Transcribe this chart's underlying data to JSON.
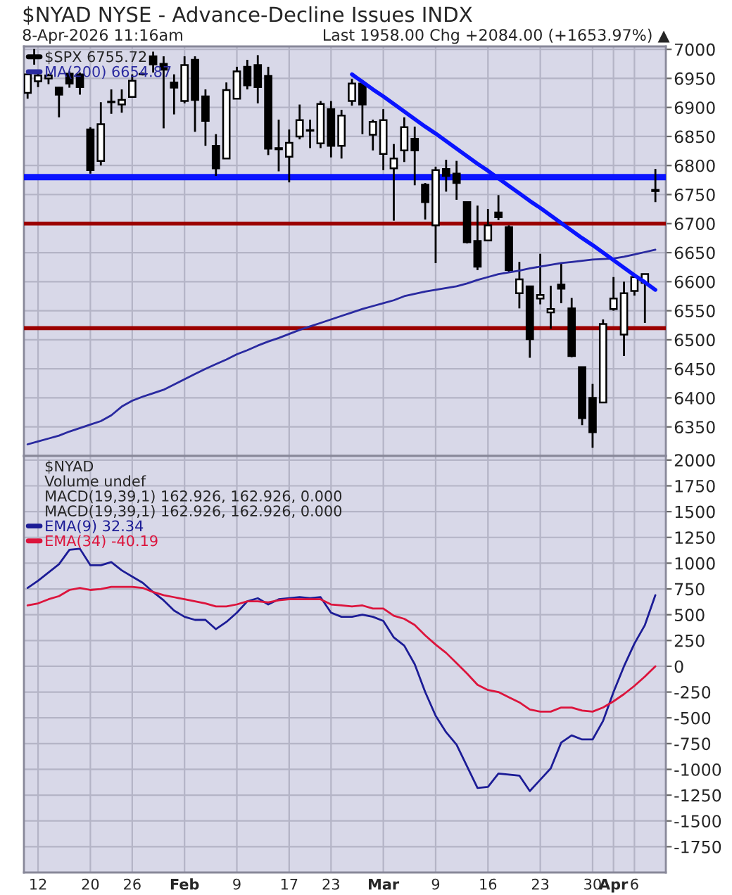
{
  "chart_data": [
    {
      "type": "candlestick",
      "title": "$NYAD NYSE - Advance-Decline Issues INDX",
      "subtitle": "8-Apr-2026 11:16am",
      "annotations": [
        "Last 1958.00 Chg +2084.00 (+1653.97%) ▲"
      ],
      "categories": [
        null,
        null,
        null,
        null,
        null,
        null,
        null,
        null,
        null,
        null,
        null,
        null,
        null,
        null,
        null,
        null,
        null,
        null,
        null,
        null,
        null,
        null,
        null,
        null,
        null,
        null,
        null,
        null,
        null,
        null,
        null,
        null,
        null,
        null,
        null,
        null,
        null,
        null,
        null,
        null,
        null,
        null,
        null,
        null,
        null,
        null,
        null,
        null,
        null,
        null,
        null,
        null,
        null,
        null,
        null,
        null,
        null,
        null,
        null,
        null,
        null
      ],
      "series": [
        {
          "name": "$SPX 6755.72",
          "type": "candlestick",
          "color": "#000000",
          "ohlc": [
            [
              6925,
              6960,
              6915,
              6957
            ],
            [
              6945,
              6960,
              6935,
              6955
            ],
            [
              6950,
              6958,
              6940,
              6955
            ],
            [
              6934,
              6935,
              6883,
              6922
            ],
            [
              6958,
              6962,
              6934,
              6941
            ],
            [
              6957,
              6960,
              6922,
              6935
            ],
            [
              6862,
              6866,
              6786,
              6792
            ],
            [
              6808,
              6909,
              6800,
              6871
            ],
            [
              6910,
              6931,
              6889,
              6909
            ],
            [
              6905,
              6931,
              6891,
              6913
            ],
            [
              6918,
              6957,
              6917,
              6946
            ],
            [
              6957,
              6960,
              6955,
              6957
            ],
            [
              6988,
              6996,
              6960,
              6974
            ],
            [
              6975,
              6988,
              6864,
              6965
            ],
            [
              6943,
              6957,
              6888,
              6934
            ],
            [
              6911,
              6988,
              6907,
              6973
            ],
            [
              6982,
              6988,
              6858,
              6913
            ],
            [
              6919,
              6931,
              6834,
              6877
            ],
            [
              6834,
              6854,
              6782,
              6795
            ],
            [
              6812,
              6943,
              6812,
              6930
            ],
            [
              6915,
              6970,
              6915,
              6962
            ],
            [
              6970,
              6982,
              6931,
              6938
            ],
            [
              6973,
              6990,
              6907,
              6935
            ],
            [
              6954,
              6970,
              6818,
              6829
            ],
            [
              6830,
              6879,
              6790,
              6828
            ],
            [
              6815,
              6862,
              6771,
              6839
            ],
            [
              6850,
              6905,
              6845,
              6878
            ],
            [
              6861,
              6879,
              6830,
              6860
            ],
            [
              6838,
              6911,
              6830,
              6906
            ],
            [
              6897,
              6911,
              6814,
              6834
            ],
            [
              6834,
              6896,
              6812,
              6886
            ],
            [
              6911,
              6949,
              6903,
              6941
            ],
            [
              6941,
              6947,
              6854,
              6905
            ],
            [
              6853,
              6879,
              6826,
              6875
            ],
            [
              6820,
              6897,
              6792,
              6878
            ],
            [
              6795,
              6837,
              6705,
              6812
            ],
            [
              6826,
              6883,
              6806,
              6866
            ],
            [
              6846,
              6867,
              6766,
              6826
            ],
            [
              6767,
              6770,
              6707,
              6737
            ],
            [
              6697,
              6798,
              6632,
              6792
            ],
            [
              6794,
              6810,
              6755,
              6782
            ],
            [
              6786,
              6808,
              6741,
              6770
            ],
            [
              6737,
              6737,
              6666,
              6668
            ],
            [
              6670,
              6731,
              6620,
              6626
            ],
            [
              6671,
              6725,
              6671,
              6697
            ],
            [
              6719,
              6749,
              6706,
              6711
            ],
            [
              6694,
              6697,
              6616,
              6620
            ],
            [
              6580,
              6634,
              6554,
              6604
            ],
            [
              6592,
              6592,
              6469,
              6501
            ],
            [
              6571,
              6648,
              6561,
              6577
            ],
            [
              6547,
              6593,
              6519,
              6553
            ],
            [
              6595,
              6632,
              6563,
              6588
            ],
            [
              6554,
              6572,
              6470,
              6472
            ],
            [
              6453,
              6453,
              6353,
              6365
            ],
            [
              6400,
              6424,
              6314,
              6341
            ],
            [
              6392,
              6535,
              6392,
              6527
            ],
            [
              6553,
              6608,
              6550,
              6571
            ],
            [
              6509,
              6600,
              6472,
              6580
            ],
            [
              6584,
              6608,
              6576,
              6608
            ],
            [
              6598,
              6613,
              6529,
              6613
            ],
            [
              6758,
              6794,
              6737,
              6756
            ]
          ]
        },
        {
          "name": "MA(200) 6654.87",
          "type": "line",
          "color": "#2a2aa0",
          "values": [
            6320,
            6325,
            6330,
            6335,
            6342,
            6348,
            6354,
            6360,
            6370,
            6385,
            6395,
            6402,
            6408,
            6414,
            6423,
            6432,
            6441,
            6450,
            6458,
            6466,
            6475,
            6482,
            6490,
            6497,
            6503,
            6510,
            6517,
            6523,
            6529,
            6535,
            6541,
            6547,
            6553,
            6558,
            6563,
            6568,
            6575,
            6579,
            6583,
            6586,
            6589,
            6592,
            6597,
            6603,
            6608,
            6613,
            6616,
            6619,
            6623,
            6626,
            6629,
            6632,
            6634,
            6636,
            6638,
            6639,
            6640,
            6643,
            6647,
            6651,
            6655
          ]
        },
        {
          "type": "line",
          "color": "#0a14ff",
          "values": [
            null,
            null,
            null,
            null,
            null,
            null,
            null,
            null,
            null,
            null,
            null,
            null,
            null,
            null,
            null,
            null,
            null,
            null,
            null,
            null,
            null,
            null,
            null,
            null,
            null,
            null,
            null,
            null,
            null,
            null,
            null,
            6957,
            6944,
            6931,
            6919,
            6906,
            6893,
            6880,
            6867,
            6855,
            6842,
            6829,
            6816,
            6803,
            6791,
            6778,
            6765,
            6752,
            6739,
            6727,
            6714,
            6701,
            6688,
            6675,
            6663,
            6650,
            6637,
            6624,
            6611,
            6599,
            6586
          ]
        }
      ],
      "ref_lines": [
        {
          "axis": "y",
          "value": 6780,
          "color": "#0a14ff"
        },
        {
          "axis": "y",
          "value": 6700,
          "color": "#9b0000"
        },
        {
          "axis": "y",
          "value": 6520,
          "color": "#9b0000"
        }
      ],
      "ylim": [
        6300,
        7005
      ],
      "yticks": [
        6350,
        6400,
        6450,
        6500,
        6550,
        6600,
        6650,
        6700,
        6750,
        6800,
        6850,
        6900,
        6950,
        7000
      ],
      "tick_labels": "y",
      "grid": true,
      "legend": "top left"
    },
    {
      "type": "line",
      "annotations": [
        "$NYAD",
        "Volume undef",
        "MACD(19,39,1) 162.926, 162.926, 0.000",
        "MACD(19,39,1) 162.926, 162.926, 0.000"
      ],
      "categories": [
        null,
        "12",
        null,
        null,
        null,
        null,
        "20",
        null,
        null,
        null,
        "26",
        null,
        null,
        null,
        null,
        "Feb",
        null,
        null,
        null,
        null,
        "9",
        null,
        null,
        null,
        null,
        "17",
        null,
        null,
        null,
        "23",
        null,
        null,
        null,
        null,
        "Mar",
        null,
        null,
        null,
        null,
        "9",
        null,
        null,
        null,
        null,
        "16",
        null,
        null,
        null,
        null,
        "23",
        null,
        null,
        null,
        null,
        "30",
        null,
        "Apr",
        null,
        "6",
        null,
        null
      ],
      "series": [
        {
          "name": "EMA(9) 32.34",
          "color": "#1c1c96",
          "values": [
            760,
            830,
            910,
            990,
            1130,
            1140,
            980,
            980,
            1010,
            930,
            870,
            810,
            720,
            640,
            540,
            480,
            450,
            450,
            360,
            430,
            520,
            630,
            660,
            600,
            650,
            660,
            670,
            660,
            670,
            520,
            480,
            480,
            500,
            480,
            440,
            280,
            200,
            20,
            -250,
            -480,
            -640,
            -760,
            -970,
            -1180,
            -1170,
            -1040,
            -1050,
            -1060,
            -1210,
            -1100,
            -990,
            -740,
            -670,
            -710,
            -710,
            -530,
            -250,
            0,
            220,
            400,
            690
          ]
        },
        {
          "name": "EMA(34) -40.19",
          "color": "#dc143c",
          "values": [
            590,
            610,
            650,
            680,
            740,
            760,
            740,
            750,
            770,
            770,
            770,
            760,
            720,
            690,
            670,
            650,
            630,
            610,
            580,
            580,
            600,
            630,
            630,
            620,
            640,
            650,
            650,
            650,
            650,
            600,
            590,
            580,
            590,
            560,
            560,
            490,
            460,
            400,
            300,
            210,
            130,
            30,
            -70,
            -180,
            -230,
            -250,
            -300,
            -350,
            -420,
            -440,
            -440,
            -400,
            -400,
            -430,
            -440,
            -400,
            -340,
            -270,
            -190,
            -100,
            0
          ]
        }
      ],
      "ylim": [
        -2000,
        2040
      ],
      "yticks": [
        -1750,
        -1500,
        -1250,
        -1000,
        -750,
        -500,
        -250,
        0,
        250,
        500,
        750,
        1000,
        1250,
        1500,
        1750,
        2000
      ],
      "grid": true,
      "legend": "top left"
    }
  ]
}
